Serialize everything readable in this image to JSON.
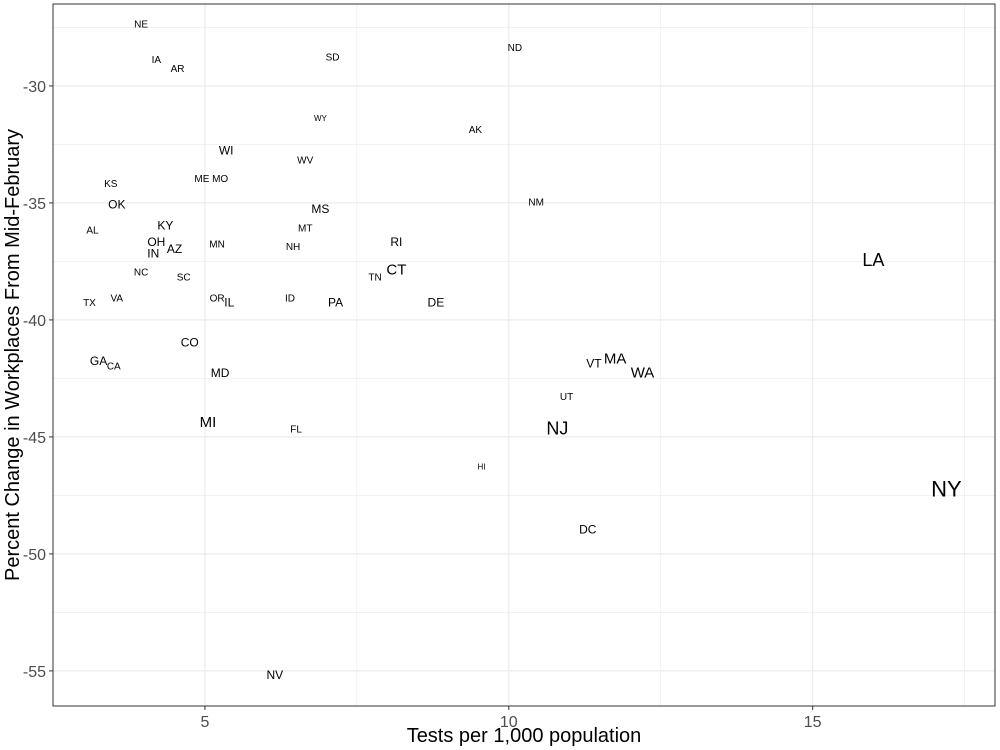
{
  "chart_data": {
    "type": "scatter",
    "title": "",
    "xlabel": "Tests per 1,000 population",
    "ylabel": "Percent Change in Workplaces From Mid-February",
    "xlim": [
      2.5,
      18.0
    ],
    "ylim": [
      -56.5,
      -26.5
    ],
    "xticks": [
      5,
      10,
      15
    ],
    "yticks": [
      -55,
      -50,
      -45,
      -40,
      -35,
      -30
    ],
    "grid": true,
    "colors": {
      "grid": "#ebebeb",
      "border": "#333333",
      "text": "#000000",
      "tick_text": "#4d4d4d"
    },
    "points": [
      {
        "label": "NE",
        "x": 3.95,
        "y": -27.4,
        "weight": 1
      },
      {
        "label": "IA",
        "x": 4.2,
        "y": -28.9,
        "weight": 1
      },
      {
        "label": "AR",
        "x": 4.55,
        "y": -29.3,
        "weight": 1
      },
      {
        "label": "SD",
        "x": 7.1,
        "y": -28.8,
        "weight": 1
      },
      {
        "label": "ND",
        "x": 10.1,
        "y": -28.4,
        "weight": 1
      },
      {
        "label": "WY",
        "x": 6.9,
        "y": -31.4,
        "weight": 0
      },
      {
        "label": "AK",
        "x": 9.45,
        "y": -31.9,
        "weight": 1
      },
      {
        "label": "WI",
        "x": 5.35,
        "y": -32.8,
        "weight": 2
      },
      {
        "label": "WV",
        "x": 6.65,
        "y": -33.2,
        "weight": 1
      },
      {
        "label": "KS",
        "x": 3.45,
        "y": -34.2,
        "weight": 1
      },
      {
        "label": "ME",
        "x": 4.95,
        "y": -34.0,
        "weight": 1
      },
      {
        "label": "MO",
        "x": 5.25,
        "y": -34.0,
        "weight": 1
      },
      {
        "label": "OK",
        "x": 3.55,
        "y": -35.1,
        "weight": 2
      },
      {
        "label": "NM",
        "x": 10.45,
        "y": -35.0,
        "weight": 1
      },
      {
        "label": "MS",
        "x": 6.9,
        "y": -35.3,
        "weight": 2
      },
      {
        "label": "KY",
        "x": 4.35,
        "y": -36.0,
        "weight": 2
      },
      {
        "label": "MT",
        "x": 6.65,
        "y": -36.1,
        "weight": 1
      },
      {
        "label": "AL",
        "x": 3.15,
        "y": -36.2,
        "weight": 1
      },
      {
        "label": "OH",
        "x": 4.2,
        "y": -36.7,
        "weight": 2
      },
      {
        "label": "RI",
        "x": 8.15,
        "y": -36.7,
        "weight": 2
      },
      {
        "label": "MN",
        "x": 5.2,
        "y": -36.8,
        "weight": 1
      },
      {
        "label": "NH",
        "x": 6.45,
        "y": -36.9,
        "weight": 1
      },
      {
        "label": "AZ",
        "x": 4.5,
        "y": -37.0,
        "weight": 2
      },
      {
        "label": "IN",
        "x": 4.15,
        "y": -37.2,
        "weight": 2
      },
      {
        "label": "LA",
        "x": 16.0,
        "y": -37.5,
        "weight": 4
      },
      {
        "label": "CT",
        "x": 8.15,
        "y": -37.9,
        "weight": 3
      },
      {
        "label": "NC",
        "x": 3.95,
        "y": -38.0,
        "weight": 1
      },
      {
        "label": "TN",
        "x": 7.8,
        "y": -38.2,
        "weight": 1
      },
      {
        "label": "SC",
        "x": 4.65,
        "y": -38.2,
        "weight": 1
      },
      {
        "label": "ID",
        "x": 6.4,
        "y": -39.1,
        "weight": 1
      },
      {
        "label": "OR",
        "x": 5.2,
        "y": -39.1,
        "weight": 1
      },
      {
        "label": "TX",
        "x": 3.1,
        "y": -39.3,
        "weight": 1
      },
      {
        "label": "VA",
        "x": 3.55,
        "y": -39.1,
        "weight": 1
      },
      {
        "label": "IL",
        "x": 5.4,
        "y": -39.3,
        "weight": 2
      },
      {
        "label": "PA",
        "x": 7.15,
        "y": -39.3,
        "weight": 2
      },
      {
        "label": "DE",
        "x": 8.8,
        "y": -39.3,
        "weight": 2
      },
      {
        "label": "CO",
        "x": 4.75,
        "y": -41.0,
        "weight": 2
      },
      {
        "label": "GA",
        "x": 3.25,
        "y": -41.8,
        "weight": 2
      },
      {
        "label": "CA",
        "x": 3.5,
        "y": -42.0,
        "weight": 1
      },
      {
        "label": "MA",
        "x": 11.75,
        "y": -41.7,
        "weight": 3
      },
      {
        "label": "VT",
        "x": 11.4,
        "y": -41.9,
        "weight": 2
      },
      {
        "label": "MD",
        "x": 5.25,
        "y": -42.3,
        "weight": 2
      },
      {
        "label": "WA",
        "x": 12.2,
        "y": -42.3,
        "weight": 3
      },
      {
        "label": "UT",
        "x": 10.95,
        "y": -43.3,
        "weight": 1
      },
      {
        "label": "MI",
        "x": 5.05,
        "y": -44.4,
        "weight": 3
      },
      {
        "label": "FL",
        "x": 6.5,
        "y": -44.7,
        "weight": 1
      },
      {
        "label": "NJ",
        "x": 10.8,
        "y": -44.7,
        "weight": 4
      },
      {
        "label": "HI",
        "x": 9.55,
        "y": -46.3,
        "weight": 0
      },
      {
        "label": "NY",
        "x": 17.2,
        "y": -47.3,
        "weight": 5
      },
      {
        "label": "DC",
        "x": 11.3,
        "y": -49.0,
        "weight": 2
      },
      {
        "label": "NV",
        "x": 6.15,
        "y": -55.2,
        "weight": 2
      }
    ]
  }
}
